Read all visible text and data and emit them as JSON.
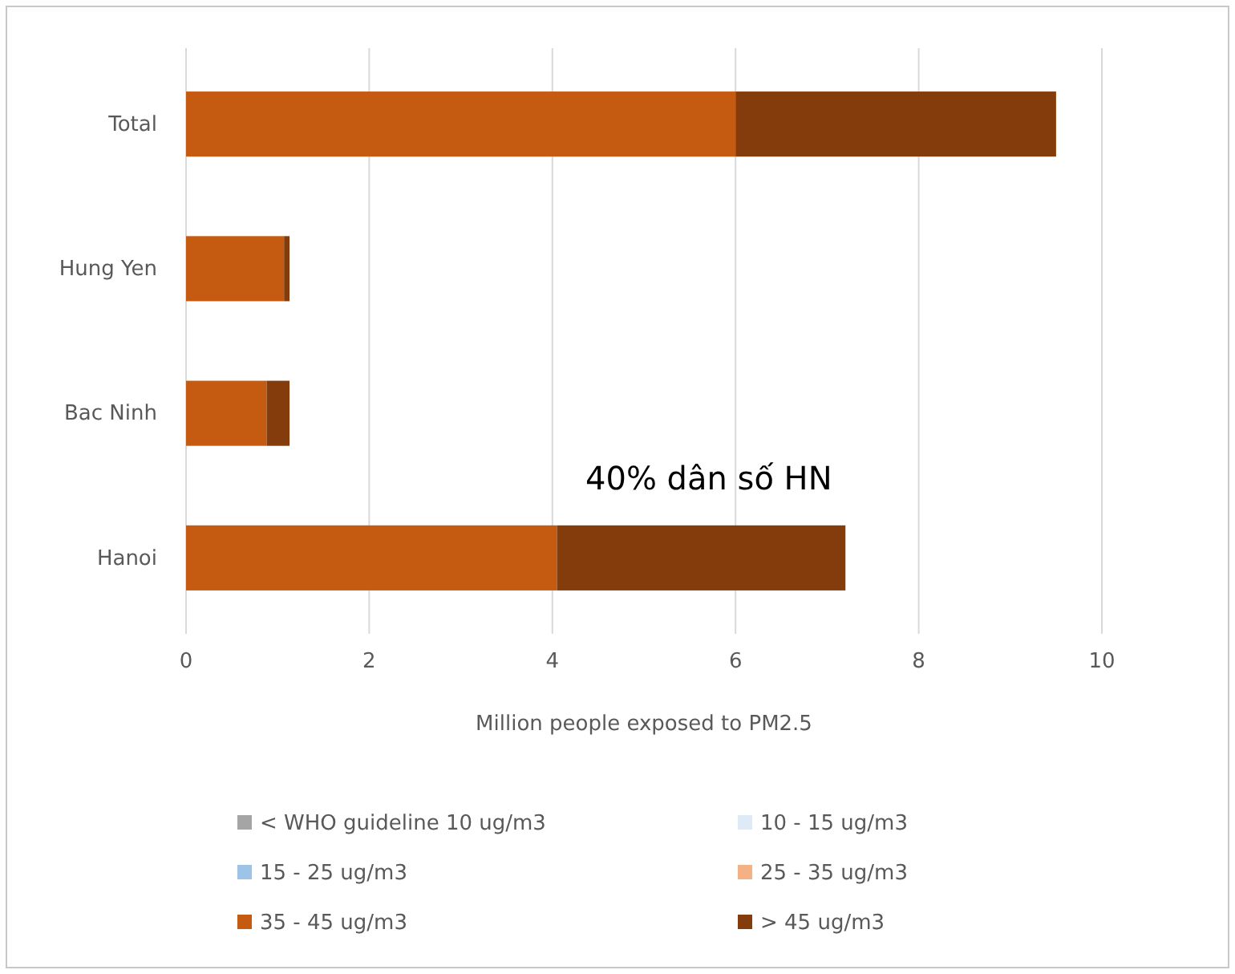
{
  "chart_data": {
    "type": "bar",
    "orientation": "horizontal",
    "stacked": true,
    "categories": [
      "Total",
      "Hung Yen",
      "Bac Ninh",
      "Hanoi"
    ],
    "series": [
      {
        "name": "< WHO guideline 10 ug/m3",
        "color": "#a5a5a5",
        "values": [
          0,
          0,
          0,
          0
        ]
      },
      {
        "name": "10 - 15 ug/m3",
        "color": "#deebf7",
        "values": [
          0,
          0,
          0,
          0
        ]
      },
      {
        "name": "15 - 25 ug/m3",
        "color": "#9dc3e6",
        "values": [
          0,
          0,
          0,
          0
        ]
      },
      {
        "name": "25 - 35 ug/m3",
        "color": "#f4b183",
        "values": [
          0,
          0,
          0,
          0
        ]
      },
      {
        "name": "35 - 45 ug/m3",
        "color": "#c55a11",
        "values": [
          6.0,
          1.07,
          0.88,
          4.05
        ]
      },
      {
        "name": "> 45 ug/m3",
        "color": "#843c0c",
        "values": [
          3.5,
          0.06,
          0.25,
          3.15
        ]
      }
    ],
    "xlabel": "Million people exposed to PM2.5",
    "xlim": [
      0,
      10
    ],
    "xticks": [
      0,
      2,
      4,
      6,
      8,
      10
    ],
    "grid": "x",
    "legend": "bottom",
    "annotations": [
      "40% dân số HN"
    ]
  }
}
